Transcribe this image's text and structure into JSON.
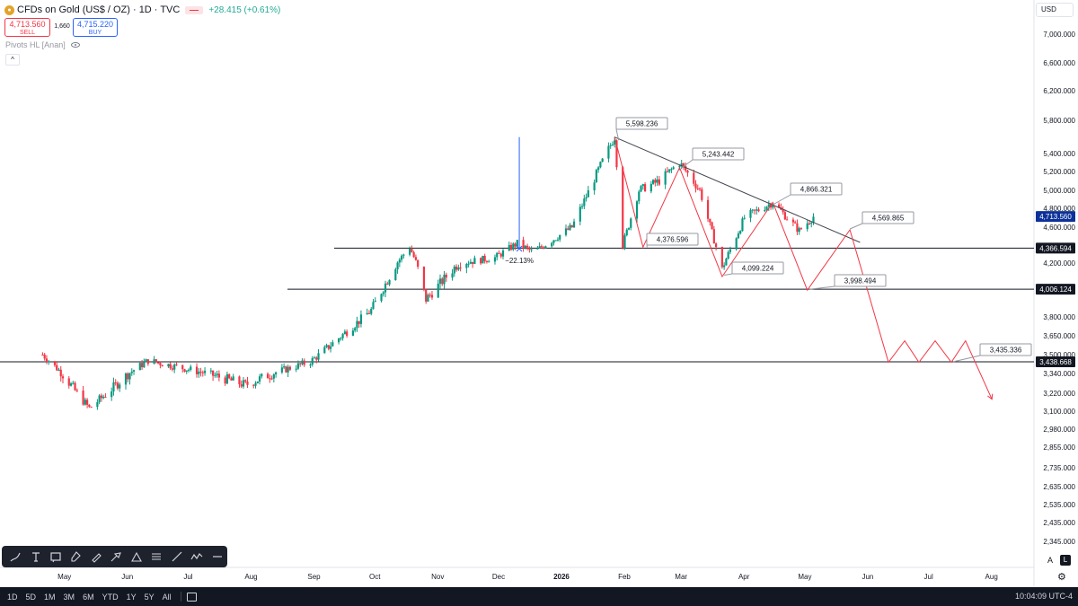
{
  "header": {
    "symbol": "CFDs on Gold (US$ / OZ) · 1D · TVC",
    "change": "+28.415 (+0.61%)",
    "sell_price": "4,713.560",
    "sell_label": "SELL",
    "buy_price": "4,715.220",
    "buy_label": "BUY",
    "spread": "1,660",
    "indicator": "Pivots HL [Anan]",
    "collapse": "^"
  },
  "currency": "USD",
  "toolbar": {
    "tools": [
      "brush-icon",
      "text-icon",
      "note-icon",
      "pin-icon",
      "pencil-icon",
      "highlighter-icon",
      "path-icon",
      "lines-icon",
      "ruler-icon",
      "zigzag-icon",
      "minus-icon"
    ]
  },
  "chart_data": {
    "type": "candlestick",
    "y_ticks": [
      "7,000.000",
      "6,600.000",
      "6,200.000",
      "5,800.000",
      "5,400.000",
      "5,200.000",
      "5,000.000",
      "4,800.000",
      "4,600.000",
      "4,200.000",
      "3,800.000",
      "3,650.000",
      "3,500.000",
      "3,340.000",
      "3,220.000",
      "3,100.000",
      "2,980.000",
      "2,855.000",
      "2,735.000",
      "2,635.000",
      "2,535.000",
      "2,435.000",
      "2,345.000"
    ],
    "x_ticks": [
      "May",
      "Jun",
      "Jul",
      "Aug",
      "Sep",
      "Oct",
      "Nov",
      "Dec",
      "2026",
      "Feb",
      "Mar",
      "Apr",
      "May",
      "Jun",
      "Jul",
      "Aug"
    ],
    "price_labels": [
      {
        "value": "4,713.560",
        "kind": "last"
      },
      {
        "value": "4,366.594",
        "kind": "level"
      },
      {
        "value": "4,006.124",
        "kind": "level"
      },
      {
        "value": "3,438.668",
        "kind": "level"
      }
    ],
    "annotations": [
      "5,598.236",
      "5,243.442",
      "4,866.321",
      "4,569.865",
      "4,376.596",
      "4,099.224",
      "3,998.494",
      "3,435.336"
    ],
    "measure_label": "−22.13%",
    "horizontal_levels": [
      4366.594,
      4006.124,
      3438.668
    ],
    "trendline": [
      {
        "x": "2026-01-29",
        "y": 5598
      },
      {
        "x": "2026-05-30",
        "y": 4430
      }
    ],
    "projection": [
      {
        "x": "2026-01-29",
        "y": 5598
      },
      {
        "x": "2026-02-12",
        "y": 4376.596
      },
      {
        "x": "2026-03-02",
        "y": 5243.442
      },
      {
        "x": "2026-03-23",
        "y": 4099.224
      },
      {
        "x": "2026-04-17",
        "y": 4866.321
      },
      {
        "x": "2026-05-04",
        "y": 3998.494
      },
      {
        "x": "2026-05-25",
        "y": 4569.865
      },
      {
        "x": "2026-06-13",
        "y": 3435.336
      },
      {
        "x": "2026-06-21",
        "y": 3610
      },
      {
        "x": "2026-06-28",
        "y": 3435.336
      },
      {
        "x": "2026-07-06",
        "y": 3610
      },
      {
        "x": "2026-07-14",
        "y": 3435.336
      },
      {
        "x": "2026-07-21",
        "y": 3610
      },
      {
        "x": "2026-08-03",
        "y": 3180
      }
    ],
    "measure": {
      "x": "2025-12-13",
      "top": 5598,
      "bottom": 4360
    },
    "key_points": [
      {
        "x": "2025-04-22",
        "y": 3500
      },
      {
        "x": "2025-05-15",
        "y": 3120
      },
      {
        "x": "2025-06-13",
        "y": 3450
      },
      {
        "x": "2025-07-31",
        "y": 3270
      },
      {
        "x": "2025-09-01",
        "y": 3440
      },
      {
        "x": "2025-10-01",
        "y": 3850
      },
      {
        "x": "2025-10-20",
        "y": 4380
      },
      {
        "x": "2025-10-28",
        "y": 3930
      },
      {
        "x": "2025-11-13",
        "y": 4200
      },
      {
        "x": "2025-12-01",
        "y": 4260
      },
      {
        "x": "2025-12-12",
        "y": 4420
      },
      {
        "x": "2025-12-20",
        "y": 4320
      },
      {
        "x": "2026-01-08",
        "y": 4600
      },
      {
        "x": "2026-01-29",
        "y": 5598
      },
      {
        "x": "2026-02-02",
        "y": 4400
      },
      {
        "x": "2026-02-10",
        "y": 5000
      },
      {
        "x": "2026-02-20",
        "y": 5100
      },
      {
        "x": "2026-03-02",
        "y": 5300
      },
      {
        "x": "2026-03-12",
        "y": 5000
      },
      {
        "x": "2026-03-23",
        "y": 4150
      },
      {
        "x": "2026-04-03",
        "y": 4700
      },
      {
        "x": "2026-04-17",
        "y": 4866
      },
      {
        "x": "2026-04-30",
        "y": 4560
      },
      {
        "x": "2026-05-07",
        "y": 4713
      }
    ],
    "colors": {
      "up": "#089981",
      "down": "#f23645",
      "projection": "#f23645",
      "trendline": "#434651",
      "levels": "#131722",
      "measure": "#2962ff"
    }
  },
  "bottom": {
    "ranges": [
      "1D",
      "5D",
      "1M",
      "3M",
      "6M",
      "YTD",
      "1Y",
      "5Y",
      "All"
    ],
    "clock": "10:04:09 UTC-4",
    "auto_label": "A",
    "log_label": "L"
  }
}
